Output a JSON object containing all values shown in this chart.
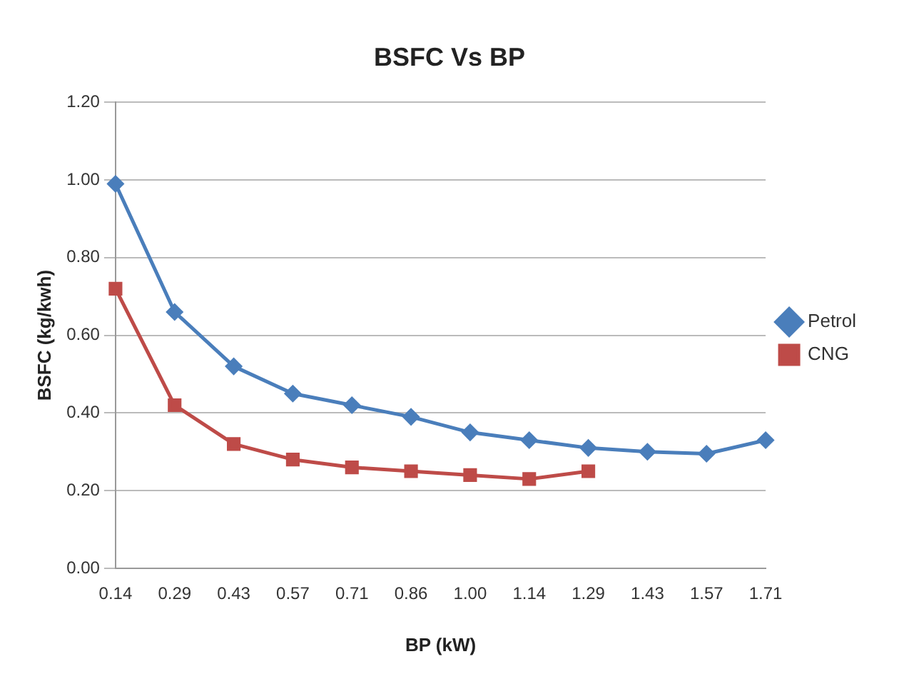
{
  "chart_data": {
    "type": "line",
    "title": "BSFC Vs BP",
    "xlabel": "BP (kW)",
    "ylabel": "BSFC (kg/kwh)",
    "categories": [
      "0.14",
      "0.29",
      "0.43",
      "0.57",
      "0.71",
      "0.86",
      "1.00",
      "1.14",
      "1.29",
      "1.43",
      "1.57",
      "1.71"
    ],
    "series": [
      {
        "name": "Petrol",
        "color": "#4a7ebb",
        "marker": "diamond",
        "values": [
          0.99,
          0.66,
          0.52,
          0.45,
          0.42,
          0.39,
          0.35,
          0.33,
          0.31,
          0.3,
          0.295,
          0.33
        ]
      },
      {
        "name": "CNG",
        "color": "#be4b48",
        "marker": "square",
        "values": [
          0.72,
          0.42,
          0.32,
          0.28,
          0.26,
          0.25,
          0.24,
          0.23,
          0.25,
          null,
          null,
          null
        ]
      }
    ],
    "ylim": [
      0,
      1.2
    ],
    "yticks": [
      {
        "value": 0,
        "label": "0.00"
      },
      {
        "value": 0.2,
        "label": "0.20"
      },
      {
        "value": 0.4,
        "label": "0.40"
      },
      {
        "value": 0.6,
        "label": "0.60"
      },
      {
        "value": 0.8,
        "label": "0.80"
      },
      {
        "value": 1,
        "label": "1.00"
      },
      {
        "value": 1.2,
        "label": "1.20"
      }
    ],
    "grid": "y",
    "legend": "right"
  }
}
